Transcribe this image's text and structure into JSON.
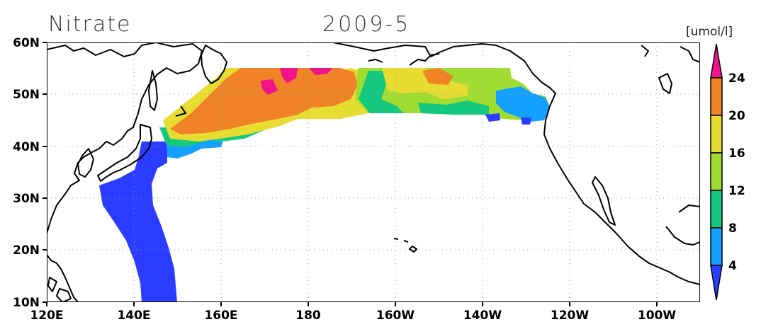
{
  "title": "Nitrate",
  "date_label": "2009-5",
  "colorbar": {
    "unit": "[umol/l]",
    "levels": [
      "4",
      "8",
      "12",
      "16",
      "20",
      "24"
    ],
    "colors": [
      "#2a3cff",
      "#14a0ff",
      "#14c87d",
      "#a0dc32",
      "#e6dc32",
      "#f08228",
      "#f0148c"
    ]
  },
  "axes": {
    "x_ticks": [
      "120E",
      "140E",
      "160E",
      "180",
      "160W",
      "140W",
      "120W",
      "100W"
    ],
    "y_ticks": [
      "60N",
      "50N",
      "40N",
      "30N",
      "20N",
      "10N"
    ],
    "x_range_deg_east": [
      120,
      270
    ],
    "y_range_deg_north": [
      10,
      60
    ],
    "grid": "dotted"
  }
}
